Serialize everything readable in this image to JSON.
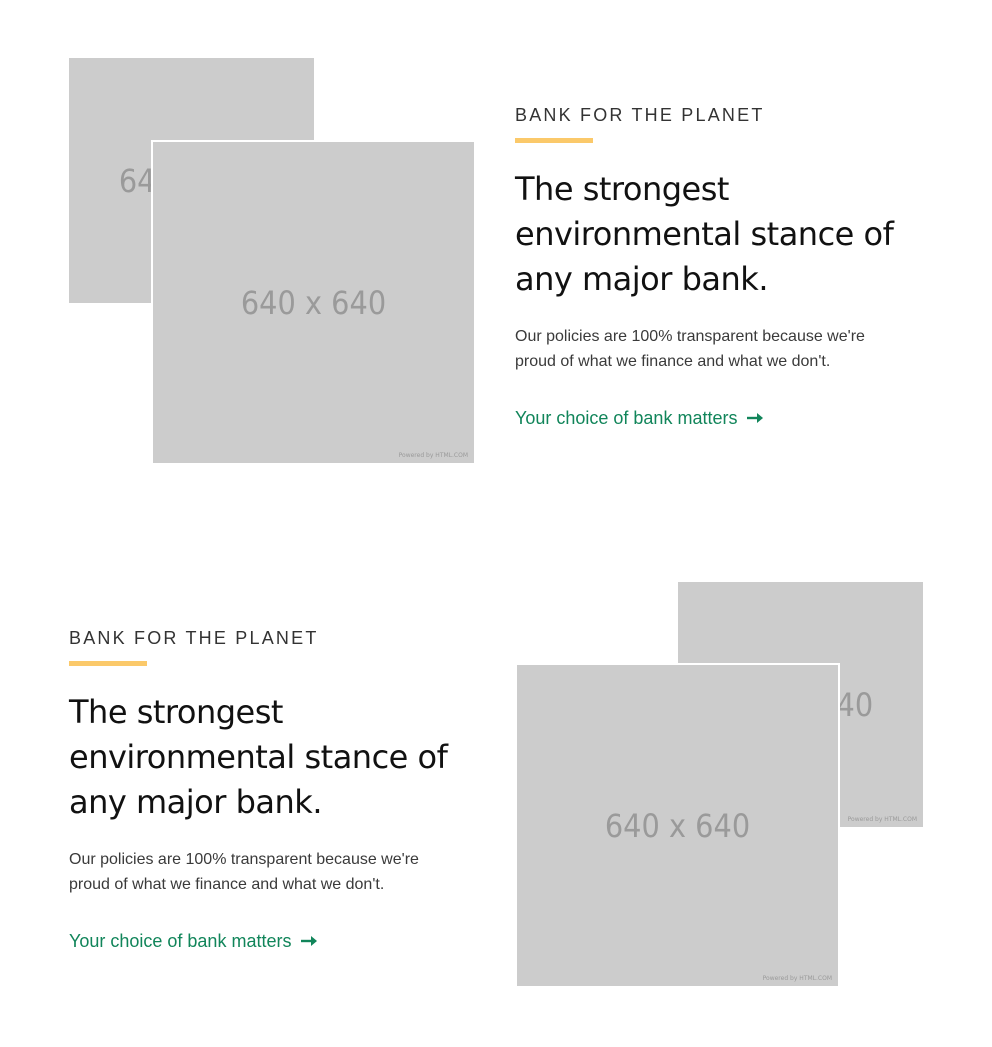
{
  "sections": [
    {
      "eyebrow": "BANK FOR THE PLANET",
      "headline": "The strongest environmental stance of any major bank.",
      "body": "Our policies are 100% transparent because we're proud of what we finance and what we don't.",
      "cta": "Your choice of bank matters",
      "image_back_label": "640 x 640",
      "image_front_label": "640 x 640",
      "image_credit": "Powered by HTML.COM"
    },
    {
      "eyebrow": "BANK FOR THE PLANET",
      "headline": "The strongest environmental stance of any major bank.",
      "body": "Our policies are 100% transparent because we're proud of what we finance and what we don't.",
      "cta": "Your choice of bank matters",
      "image_back_label": "640 x 640",
      "image_front_label": "640 x 640",
      "image_credit": "Powered by HTML.COM"
    }
  ],
  "colors": {
    "accent_bar": "#fbc96a",
    "link": "#11855a",
    "placeholder": "#cccccc"
  },
  "icons": {
    "cta_icon": "arrow-right-icon"
  }
}
